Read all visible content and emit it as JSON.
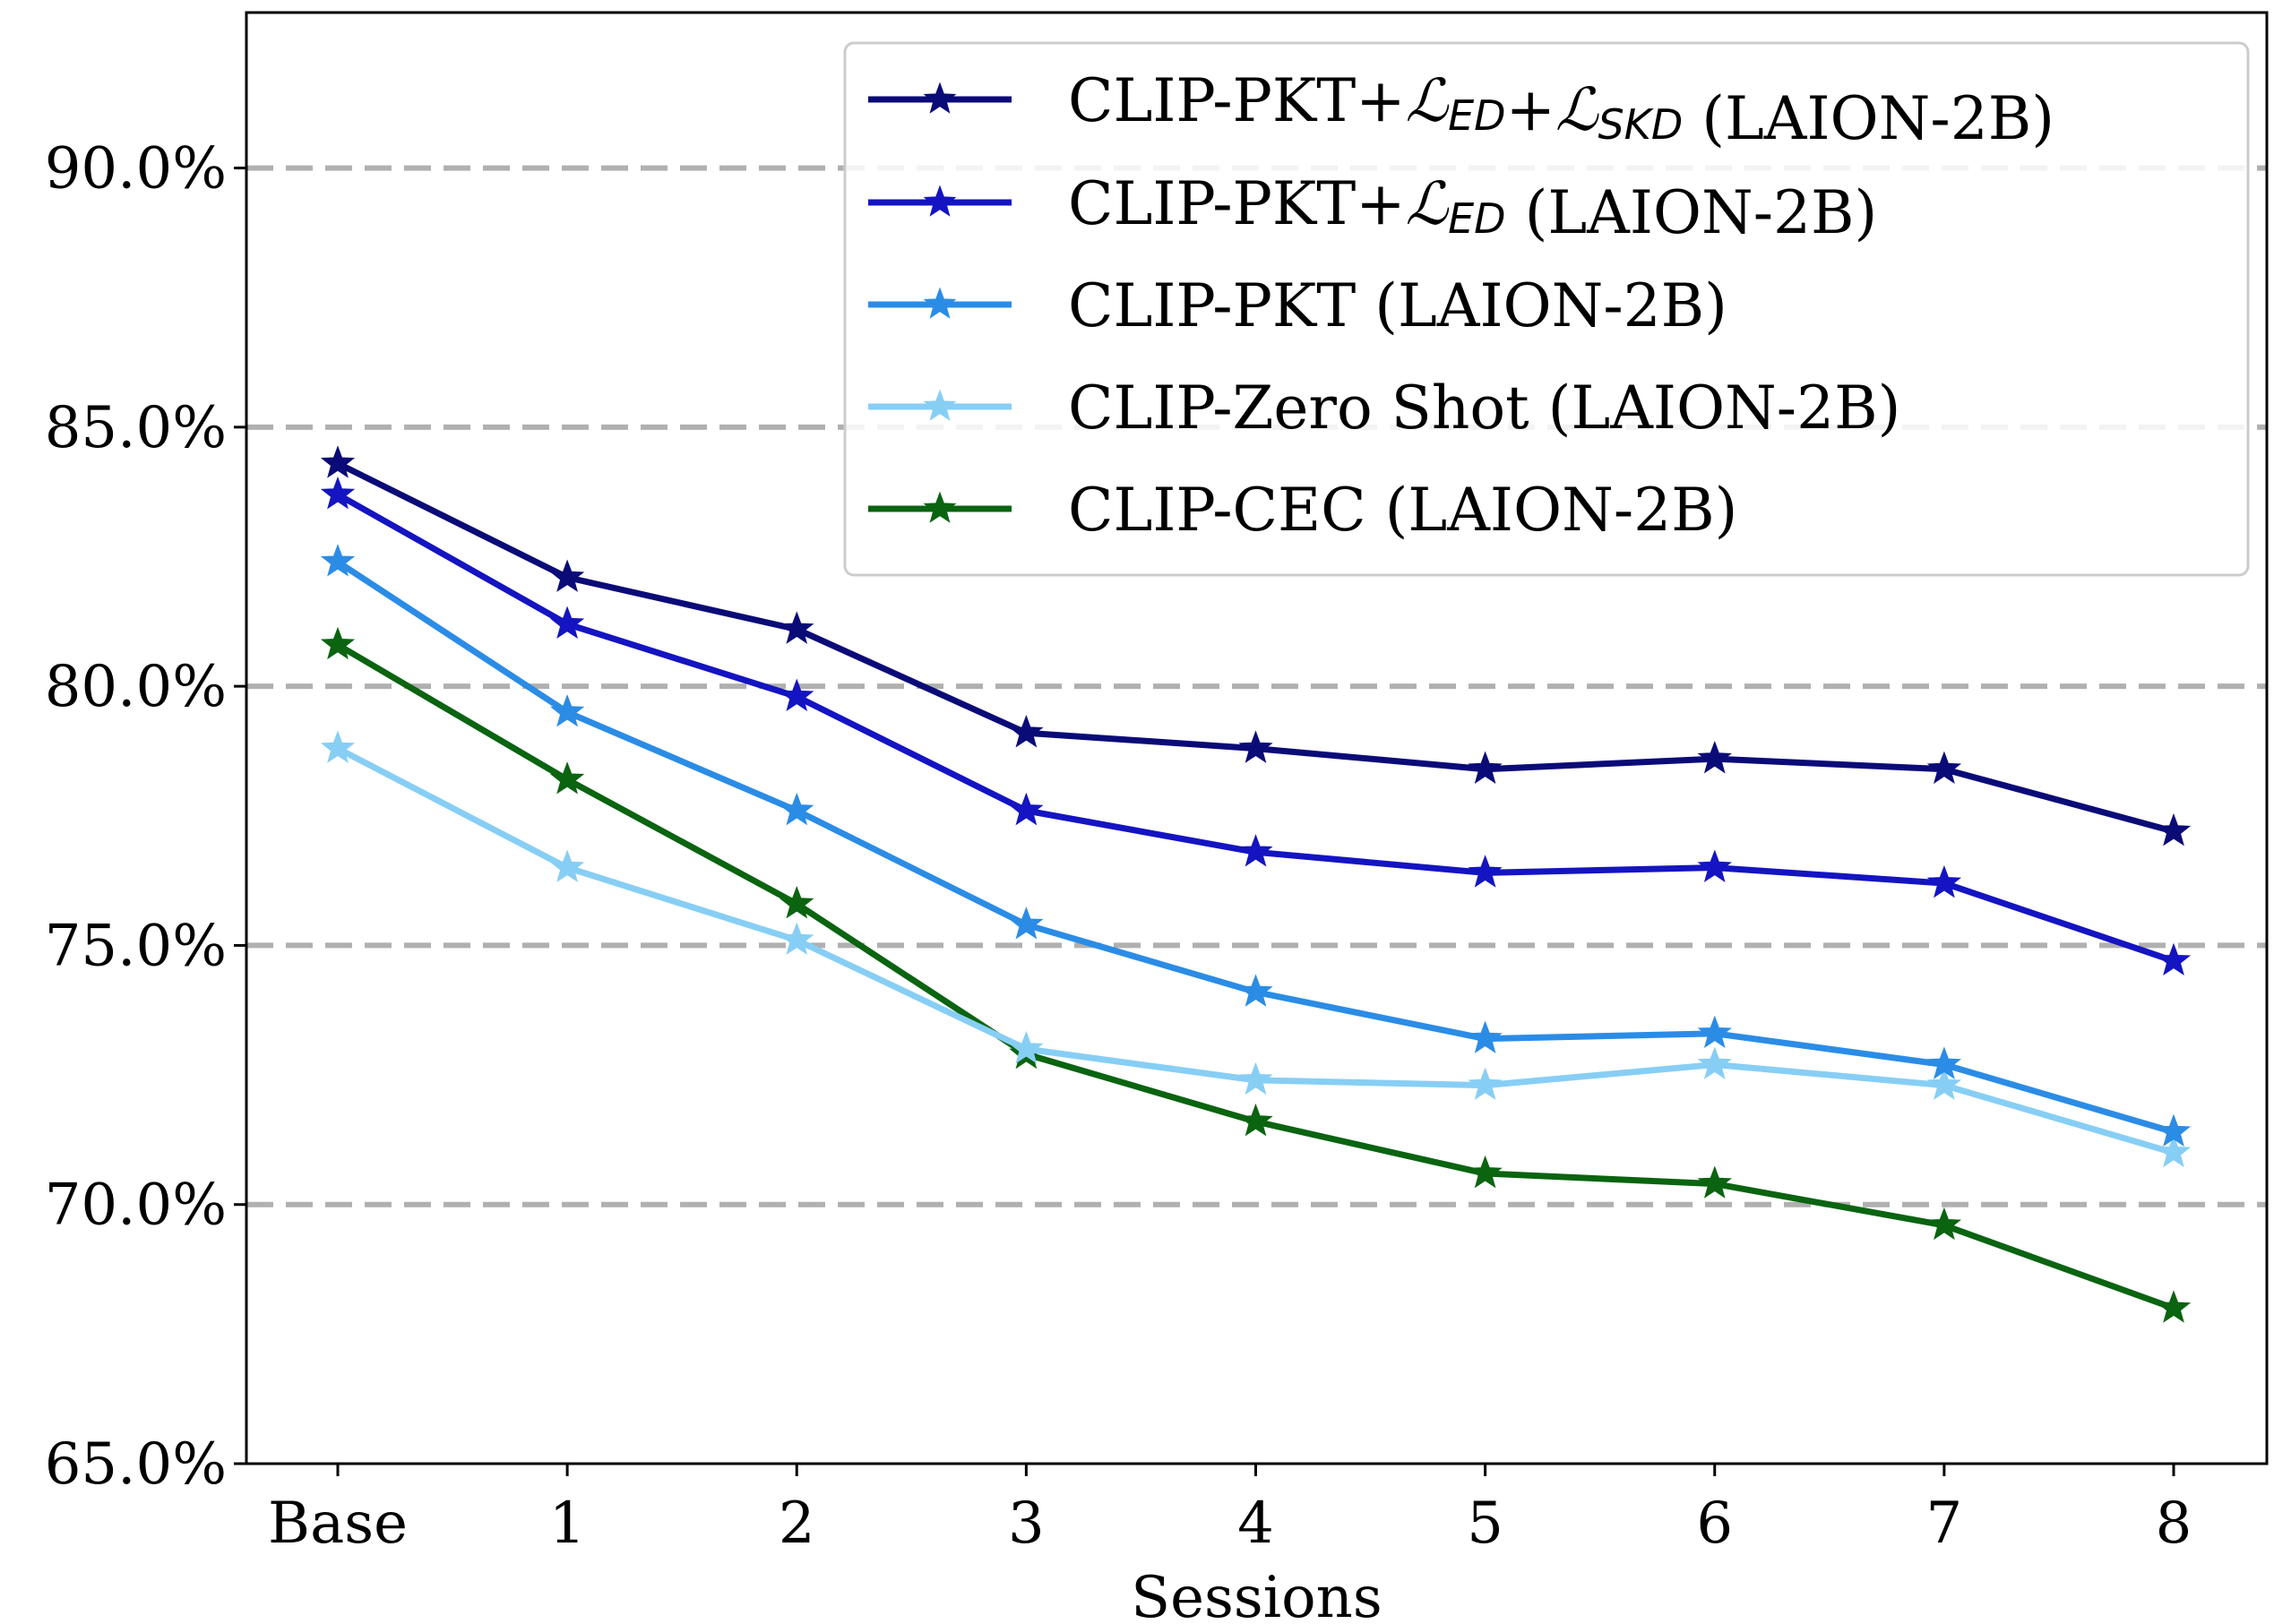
{
  "chart_data": {
    "type": "line",
    "xlabel": "Sessions",
    "ylabel": "",
    "categories": [
      "Base",
      "1",
      "2",
      "3",
      "4",
      "5",
      "6",
      "7",
      "8"
    ],
    "ylim": [
      65.0,
      93.0
    ],
    "yticks": [
      "65.0%",
      "70.0%",
      "75.0%",
      "80.0%",
      "85.0%",
      "90.0%"
    ],
    "ytick_values": [
      65,
      70,
      75,
      80,
      85,
      90
    ],
    "grid": "horizontal dashed",
    "legend_position": "top-right",
    "marker": "star",
    "series": [
      {
        "name": "CLIP-PKT+ℒED+ℒSKD (LAION-2B)",
        "label_parts": [
          "CLIP-PKT+",
          "ℒ",
          "ED",
          "+",
          "ℒ",
          "SKD",
          " (LAION-2B)"
        ],
        "color": "#0b0b78",
        "values": [
          84.3,
          82.1,
          81.1,
          79.1,
          78.8,
          78.4,
          78.6,
          78.4,
          77.2
        ]
      },
      {
        "name": "CLIP-PKT+ℒED (LAION-2B)",
        "label_parts": [
          "CLIP-PKT+",
          "ℒ",
          "ED",
          " (LAION-2B)"
        ],
        "color": "#1414c2",
        "values": [
          83.7,
          81.2,
          79.8,
          77.6,
          76.8,
          76.4,
          76.5,
          76.2,
          74.7
        ]
      },
      {
        "name": "CLIP-PKT (LAION-2B)",
        "color": "#2b8ce6",
        "values": [
          82.4,
          79.5,
          77.6,
          75.4,
          74.1,
          73.2,
          73.3,
          72.7,
          71.4
        ]
      },
      {
        "name": "CLIP-Zero Shot (LAION-2B)",
        "color": "#87cef5",
        "values": [
          78.8,
          76.5,
          75.1,
          73.0,
          72.4,
          72.3,
          72.7,
          72.3,
          71.0
        ]
      },
      {
        "name": "CLIP-CEC (LAION-2B)",
        "color": "#0a6410",
        "values": [
          80.8,
          78.2,
          75.8,
          72.9,
          71.6,
          70.6,
          70.4,
          69.6,
          68.0
        ]
      }
    ]
  }
}
